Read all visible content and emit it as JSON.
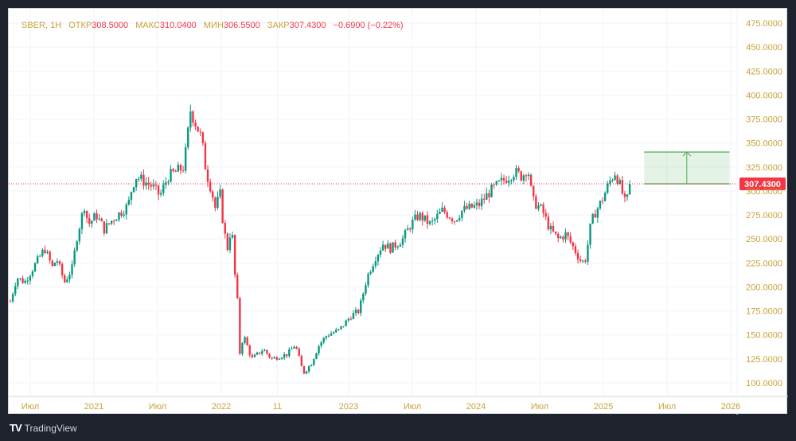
{
  "legend": {
    "symbol": "SBER, 1H",
    "open_label": "ОТКР",
    "open": "308.5000",
    "high_label": "МАКС",
    "high": "310.0400",
    "low_label": "МИН",
    "low": "306.5500",
    "close_label": "ЗАКР",
    "close": "307.4300",
    "change": "−0.6900 (−0.22%)"
  },
  "footer": {
    "brand": "TradingView"
  },
  "colors": {
    "up": "#089981",
    "down": "#f23645",
    "axis_text": "#c9a13a",
    "projection": "#4caf50"
  },
  "chart_data": {
    "type": "candlestick",
    "title": "SBER, 1H",
    "ylim": [
      95,
      480
    ],
    "xlim": [
      2020.33,
      2026.05
    ],
    "y_ticks": [
      475,
      450,
      425,
      400,
      375,
      350,
      325,
      300,
      275,
      250,
      225,
      200,
      175,
      150,
      125,
      100
    ],
    "y_tick_labels": [
      "475.0000",
      "450.0000",
      "425.0000",
      "400.0000",
      "375.0000",
      "350.0000",
      "325.0000",
      "300.0000",
      "275.0000",
      "250.0000",
      "225.0000",
      "200.0000",
      "175.0000",
      "150.0000",
      "125.0000",
      "100.0000"
    ],
    "x_ticks": [
      {
        "t": 2020.5,
        "label": "Июл"
      },
      {
        "t": 2021.0,
        "label": "2021"
      },
      {
        "t": 2021.5,
        "label": "Июл"
      },
      {
        "t": 2022.0,
        "label": "2022"
      },
      {
        "t": 2022.44,
        "label": "11"
      },
      {
        "t": 2023.0,
        "label": "2023"
      },
      {
        "t": 2023.5,
        "label": "Июл"
      },
      {
        "t": 2024.0,
        "label": "2024"
      },
      {
        "t": 2024.5,
        "label": "Июл"
      },
      {
        "t": 2025.0,
        "label": "2025"
      },
      {
        "t": 2025.5,
        "label": "Июл"
      },
      {
        "t": 2026.0,
        "label": "2026"
      }
    ],
    "last_price": 307.43,
    "last_price_label": "307.4300",
    "projection": {
      "t_start": 2025.32,
      "t_end": 2025.99,
      "price_from": 307.43,
      "price_to": 340.6
    },
    "price_path": [
      [
        2020.344,
        185
      ],
      [
        2020.394,
        210
      ],
      [
        2020.456,
        205
      ],
      [
        2020.613,
        240
      ],
      [
        2020.675,
        220
      ],
      [
        2020.706,
        230
      ],
      [
        2020.769,
        205
      ],
      [
        2020.831,
        220
      ],
      [
        2020.863,
        250
      ],
      [
        2020.925,
        285
      ],
      [
        2020.956,
        265
      ],
      [
        2021.019,
        275
      ],
      [
        2021.081,
        260
      ],
      [
        2021.144,
        270
      ],
      [
        2021.269,
        285
      ],
      [
        2021.3,
        305
      ],
      [
        2021.331,
        315
      ],
      [
        2021.394,
        310
      ],
      [
        2021.456,
        305
      ],
      [
        2021.519,
        295
      ],
      [
        2021.581,
        315
      ],
      [
        2021.644,
        320
      ],
      [
        2021.706,
        325
      ],
      [
        2021.738,
        360
      ],
      [
        2021.756,
        385
      ],
      [
        2021.8,
        370
      ],
      [
        2021.844,
        355
      ],
      [
        2021.881,
        320
      ],
      [
        2021.925,
        300
      ],
      [
        2021.956,
        280
      ],
      [
        2021.988,
        300
      ],
      [
        2022.019,
        260
      ],
      [
        2022.05,
        240
      ],
      [
        2022.081,
        265
      ],
      [
        2022.113,
        200
      ],
      [
        2022.131,
        180
      ],
      [
        2022.144,
        130
      ],
      [
        2022.175,
        150
      ],
      [
        2022.238,
        125
      ],
      [
        2022.331,
        135
      ],
      [
        2022.394,
        125
      ],
      [
        2022.519,
        130
      ],
      [
        2022.581,
        140
      ],
      [
        2022.644,
        110
      ],
      [
        2022.706,
        120
      ],
      [
        2022.769,
        140
      ],
      [
        2022.831,
        150
      ],
      [
        2022.925,
        155
      ],
      [
        2023.019,
        170
      ],
      [
        2023.081,
        175
      ],
      [
        2023.144,
        210
      ],
      [
        2023.206,
        230
      ],
      [
        2023.269,
        245
      ],
      [
        2023.331,
        240
      ],
      [
        2023.425,
        250
      ],
      [
        2023.488,
        265
      ],
      [
        2023.55,
        275
      ],
      [
        2023.644,
        265
      ],
      [
        2023.738,
        280
      ],
      [
        2023.831,
        270
      ],
      [
        2023.894,
        280
      ],
      [
        2024.019,
        285
      ],
      [
        2024.113,
        300
      ],
      [
        2024.206,
        310
      ],
      [
        2024.3,
        320
      ],
      [
        2024.363,
        315
      ],
      [
        2024.406,
        325
      ],
      [
        2024.444,
        290
      ],
      [
        2024.519,
        280
      ],
      [
        2024.581,
        260
      ],
      [
        2024.644,
        250
      ],
      [
        2024.706,
        255
      ],
      [
        2024.769,
        240
      ],
      [
        2024.831,
        225
      ],
      [
        2024.863,
        230
      ],
      [
        2024.894,
        260
      ],
      [
        2024.925,
        275
      ],
      [
        2024.988,
        290
      ],
      [
        2025.05,
        310
      ],
      [
        2025.094,
        320
      ],
      [
        2025.144,
        300
      ],
      [
        2025.175,
        285
      ],
      [
        2025.219,
        307.43
      ]
    ]
  }
}
